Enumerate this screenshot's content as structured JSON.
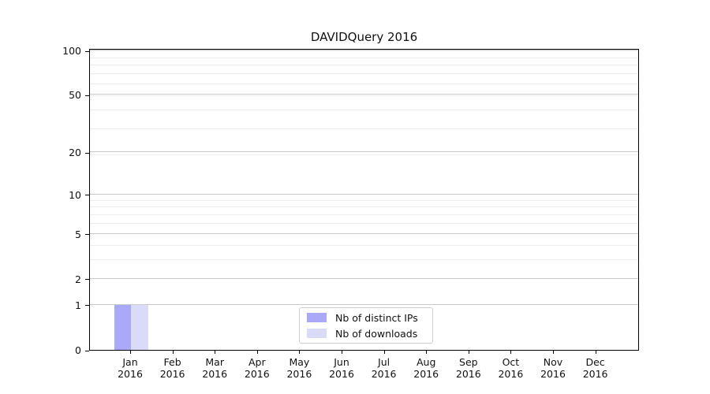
{
  "chart_data": {
    "type": "bar",
    "title": "DAVIDQuery 2016",
    "x_categories": [
      "Jan 2016",
      "Feb 2016",
      "Mar 2016",
      "Apr 2016",
      "May 2016",
      "Jun 2016",
      "Jul 2016",
      "Aug 2016",
      "Sep 2016",
      "Oct 2016",
      "Nov 2016",
      "Dec 2016"
    ],
    "series": [
      {
        "name": "Nb of distinct IPs",
        "color": "#a9a9f7",
        "values": [
          1,
          0,
          0,
          0,
          0,
          0,
          0,
          0,
          0,
          0,
          0,
          0
        ]
      },
      {
        "name": "Nb of downloads",
        "color": "#dadaf9",
        "values": [
          1,
          0,
          0,
          0,
          0,
          0,
          0,
          0,
          0,
          0,
          0,
          0
        ]
      }
    ],
    "y_scale": "log1p",
    "y_ticks": [
      0,
      1,
      2,
      5,
      10,
      20,
      50,
      100
    ],
    "y_minor_gridlines": [
      3,
      4,
      6,
      7,
      8,
      9,
      19,
      29,
      39,
      49,
      59,
      69,
      79,
      89,
      99
    ],
    "ylim_top": 104,
    "grid": "y-only",
    "legend_position": "lower center",
    "colors": {
      "spine": "#000000",
      "grid_major": "#c9c9c9",
      "grid_minor": "#ececec",
      "background": "#ffffff"
    }
  }
}
